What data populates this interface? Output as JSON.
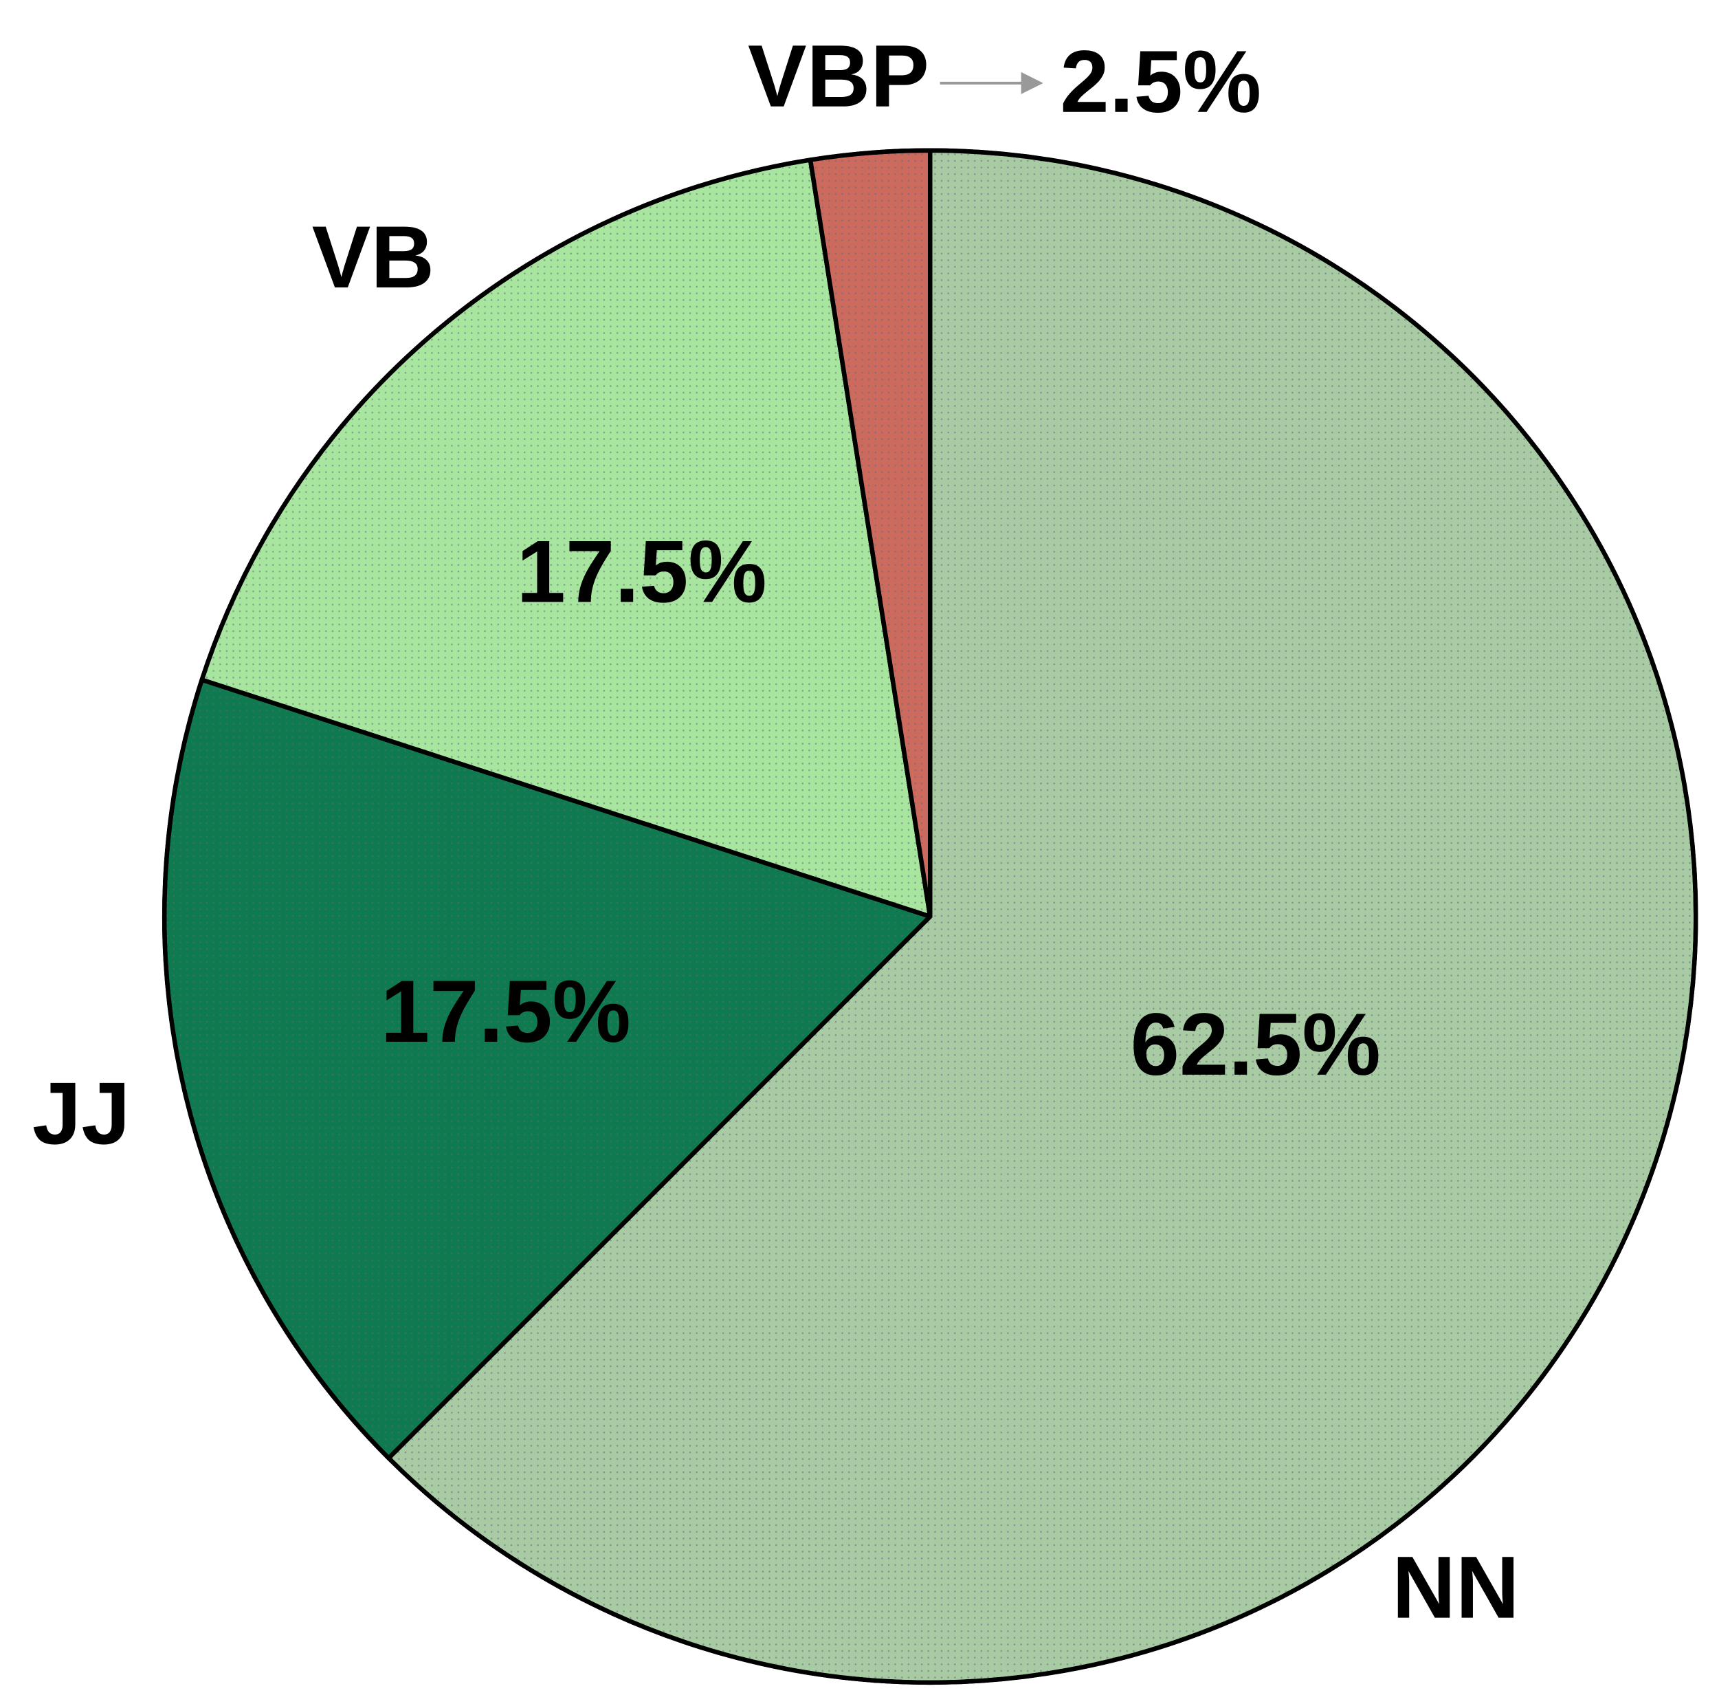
{
  "chart_data": {
    "type": "pie",
    "categories": [
      "NN",
      "JJ",
      "VB",
      "VBP"
    ],
    "values": [
      62.5,
      17.5,
      17.5,
      2.5
    ],
    "value_labels": [
      "62.5%",
      "17.5%",
      "17.5%",
      "2.5%"
    ],
    "colors": [
      "#a9cba4",
      "#0f7a4f",
      "#a8e6a0",
      "#cd6a5e"
    ]
  }
}
